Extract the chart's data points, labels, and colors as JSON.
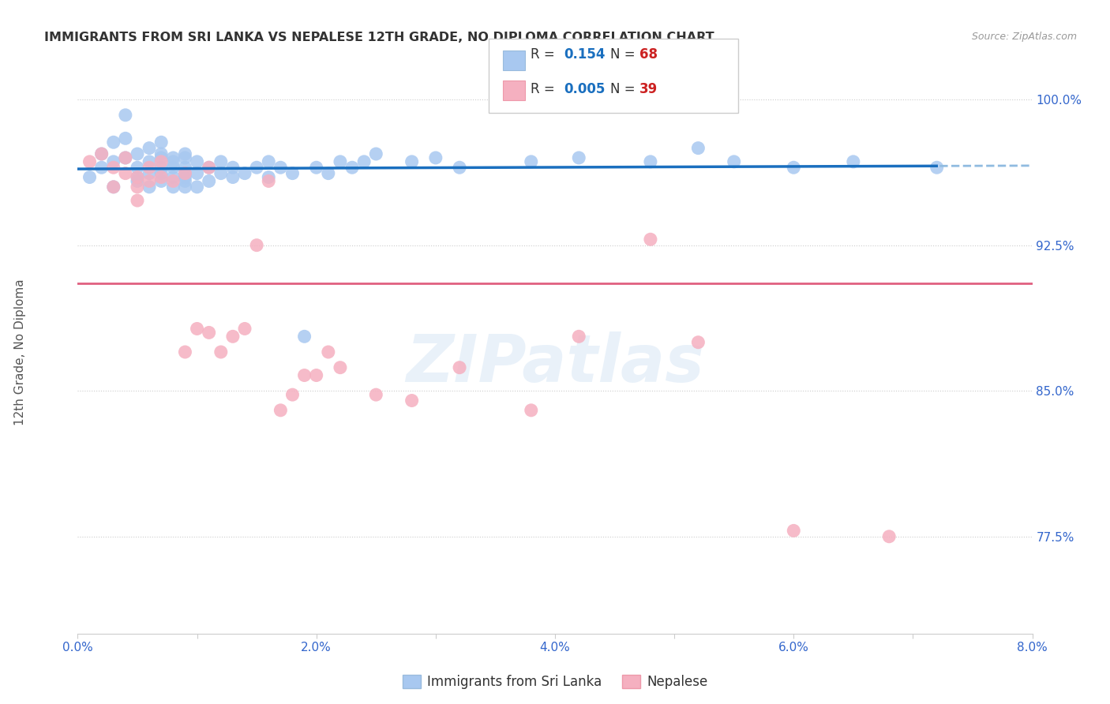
{
  "title": "IMMIGRANTS FROM SRI LANKA VS NEPALESE 12TH GRADE, NO DIPLOMA CORRELATION CHART",
  "source": "Source: ZipAtlas.com",
  "ylabel": "12th Grade, No Diploma",
  "legend1": "Immigrants from Sri Lanka",
  "legend2": "Nepalese",
  "blue_color": "#A8C8F0",
  "pink_color": "#F5B0C0",
  "line_blue_color": "#1A6FBF",
  "line_blue_dash_color": "#90BBE0",
  "line_pink_color": "#E06080",
  "axis_label_color": "#3366CC",
  "grid_color": "#CCCCCC",
  "watermark": "ZIPatlas",
  "R_blue": "0.154",
  "N_blue": "68",
  "R_pink": "0.005",
  "N_pink": "39",
  "blue_scatter_x": [
    0.001,
    0.002,
    0.002,
    0.003,
    0.003,
    0.003,
    0.004,
    0.004,
    0.004,
    0.005,
    0.005,
    0.005,
    0.005,
    0.006,
    0.006,
    0.006,
    0.006,
    0.007,
    0.007,
    0.007,
    0.007,
    0.007,
    0.007,
    0.008,
    0.008,
    0.008,
    0.008,
    0.008,
    0.009,
    0.009,
    0.009,
    0.009,
    0.009,
    0.009,
    0.009,
    0.01,
    0.01,
    0.01,
    0.011,
    0.011,
    0.012,
    0.012,
    0.013,
    0.013,
    0.014,
    0.015,
    0.016,
    0.016,
    0.017,
    0.018,
    0.019,
    0.02,
    0.021,
    0.022,
    0.023,
    0.024,
    0.025,
    0.028,
    0.03,
    0.032,
    0.038,
    0.042,
    0.048,
    0.052,
    0.055,
    0.06,
    0.065,
    0.072
  ],
  "blue_scatter_y": [
    0.96,
    0.972,
    0.965,
    0.978,
    0.968,
    0.955,
    0.98,
    0.992,
    0.97,
    0.96,
    0.965,
    0.972,
    0.958,
    0.975,
    0.968,
    0.962,
    0.955,
    0.978,
    0.97,
    0.965,
    0.962,
    0.958,
    0.972,
    0.97,
    0.965,
    0.96,
    0.955,
    0.968,
    0.958,
    0.962,
    0.965,
    0.97,
    0.955,
    0.96,
    0.972,
    0.962,
    0.968,
    0.955,
    0.965,
    0.958,
    0.962,
    0.968,
    0.96,
    0.965,
    0.962,
    0.965,
    0.96,
    0.968,
    0.965,
    0.962,
    0.878,
    0.965,
    0.962,
    0.968,
    0.965,
    0.968,
    0.972,
    0.968,
    0.97,
    0.965,
    0.968,
    0.97,
    0.968,
    0.975,
    0.968,
    0.965,
    0.968,
    0.965
  ],
  "pink_scatter_x": [
    0.001,
    0.002,
    0.003,
    0.003,
    0.004,
    0.004,
    0.005,
    0.005,
    0.005,
    0.006,
    0.006,
    0.007,
    0.007,
    0.008,
    0.009,
    0.009,
    0.01,
    0.011,
    0.011,
    0.012,
    0.013,
    0.014,
    0.015,
    0.016,
    0.017,
    0.018,
    0.019,
    0.02,
    0.021,
    0.022,
    0.025,
    0.028,
    0.032,
    0.038,
    0.042,
    0.048,
    0.052,
    0.06,
    0.068
  ],
  "pink_scatter_y": [
    0.968,
    0.972,
    0.965,
    0.955,
    0.962,
    0.97,
    0.955,
    0.96,
    0.948,
    0.958,
    0.965,
    0.96,
    0.968,
    0.958,
    0.962,
    0.87,
    0.882,
    0.88,
    0.965,
    0.87,
    0.878,
    0.882,
    0.925,
    0.958,
    0.84,
    0.848,
    0.858,
    0.858,
    0.87,
    0.862,
    0.848,
    0.845,
    0.862,
    0.84,
    0.878,
    0.928,
    0.875,
    0.778,
    0.775
  ],
  "xlim": [
    0.0,
    0.08
  ],
  "ylim": [
    0.725,
    1.015
  ],
  "yticks": [
    0.775,
    0.85,
    0.925,
    1.0
  ],
  "ytick_labels": [
    "77.5%",
    "85.0%",
    "92.5%",
    "100.0%"
  ],
  "xticks": [
    0.0,
    0.01,
    0.02,
    0.03,
    0.04,
    0.05,
    0.06,
    0.07,
    0.08
  ],
  "xtick_labels": [
    "0.0%",
    "",
    "2.0%",
    "",
    "4.0%",
    "",
    "6.0%",
    "",
    "8.0%"
  ]
}
